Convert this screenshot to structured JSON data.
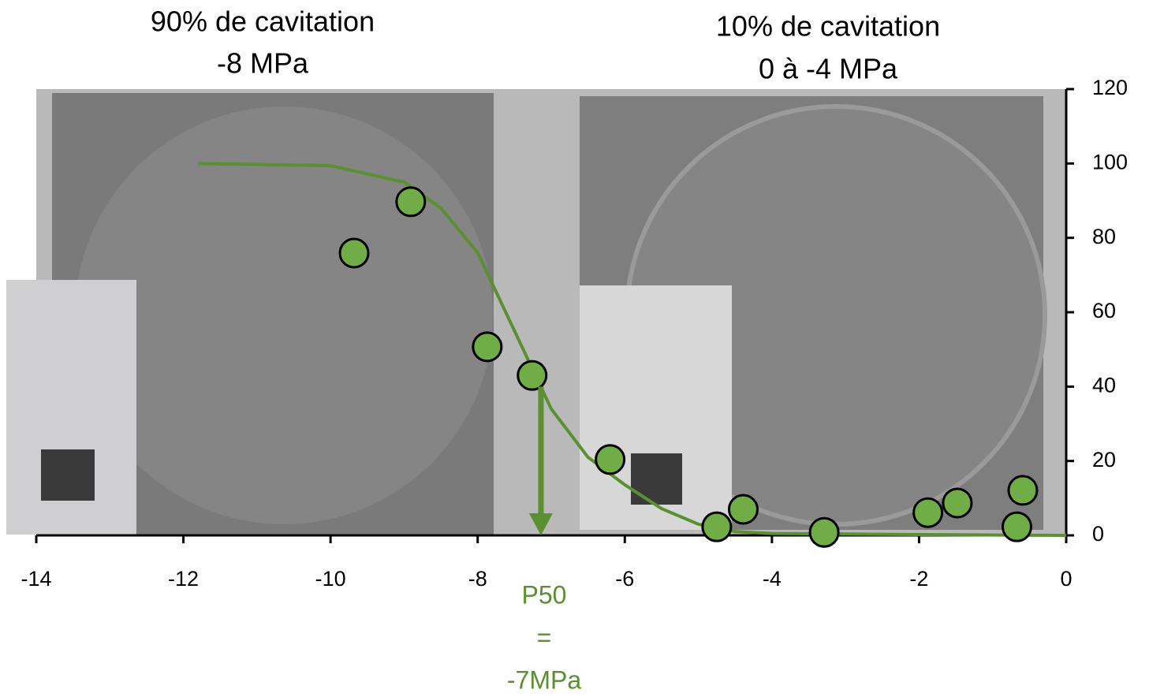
{
  "chart_data": {
    "type": "scatter",
    "title_left": [
      "90% de cavitation",
      "-8 MPa"
    ],
    "title_right": [
      "10% de cavitation",
      "0 à -4 MPa"
    ],
    "annotation": [
      "P50",
      "=",
      "-7MPa"
    ],
    "xlim": [
      -14,
      0
    ],
    "xticks": [
      -14,
      -12,
      -10,
      -8,
      -6,
      -4,
      -2,
      0
    ],
    "ylim": [
      0,
      120
    ],
    "yticks": [
      0,
      20,
      40,
      60,
      80,
      100,
      120
    ],
    "series": [
      {
        "type": "line",
        "color": "#5a8f32",
        "x": [
          -11.8,
          -10,
          -9,
          -8.5,
          -8,
          -7.5,
          -7,
          -6.5,
          -6,
          -5.5,
          -5,
          -4.5,
          -4,
          -2,
          0
        ],
        "values": [
          100,
          99.4,
          95,
          88,
          76,
          55,
          34,
          21,
          13.6,
          7.2,
          3,
          1,
          0.5,
          0.2,
          0
        ]
      },
      {
        "type": "scatter",
        "color": "#70ad47",
        "x": [
          -9.68,
          -8.91,
          -7.87,
          -7.26,
          -6.2,
          -4.75,
          -4.39,
          -3.29,
          -1.88,
          -1.48,
          -0.67,
          -0.59
        ],
        "values": [
          75.9,
          89.7,
          50.7,
          43,
          20.4,
          2.3,
          7,
          0.8,
          6.1,
          8.7,
          2.3,
          12.1
        ]
      }
    ],
    "p50_arrow": {
      "x": -7.14,
      "from": 40,
      "to": 0,
      "color": "#5a8f32"
    }
  }
}
